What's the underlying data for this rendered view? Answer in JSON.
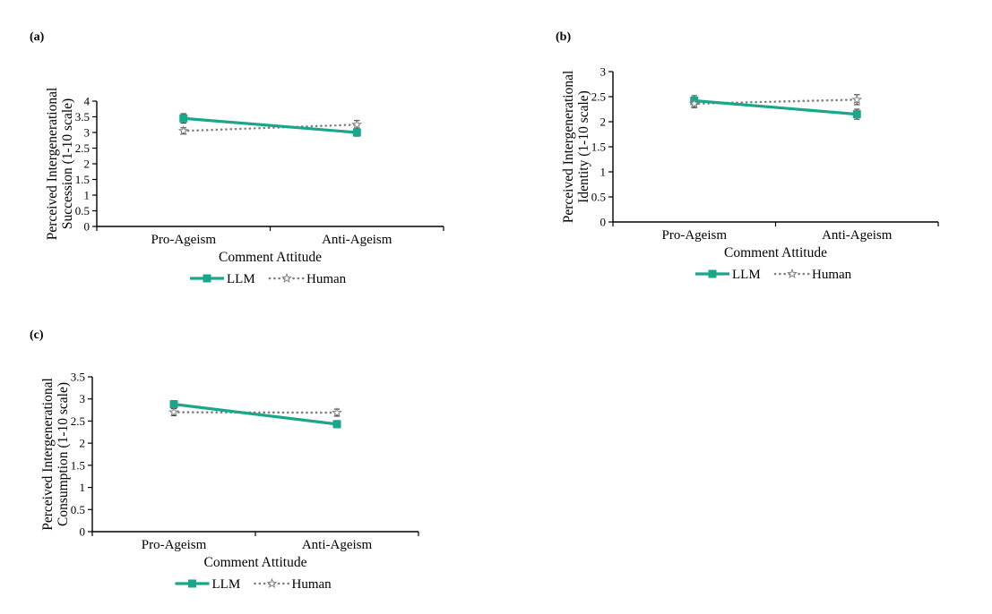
{
  "figure": {
    "background": "#ffffff",
    "colors": {
      "llm": "#1aa689",
      "human": "#7f7f7f",
      "error_bar": "#404040",
      "axis": "#000000",
      "text": "#000000",
      "marker_fill_human": "#ffffff"
    },
    "legend": {
      "position": "bottom",
      "items": [
        {
          "label": "LLM",
          "marker": "filled-square",
          "line": "solid",
          "color": "#1aa689"
        },
        {
          "label": "Human",
          "marker": "open-star",
          "line": "dotted",
          "color": "#7f7f7f"
        }
      ]
    }
  },
  "chart_data": [
    {
      "id": "a",
      "panel_label": "(a)",
      "type": "line",
      "title": "",
      "ylabel": "Perceived Intergenerational Succession (1-10 scale)",
      "ylabel_lines": [
        "Perceived Intergenerational",
        "Succession (1-10 scale)"
      ],
      "xlabel": "Comment Attitude",
      "categories": [
        "Pro-Ageism",
        "Anti-Ageism"
      ],
      "ylim": [
        0,
        4
      ],
      "yticks": [
        0,
        0.5,
        1,
        1.5,
        2,
        2.5,
        3,
        3.5,
        4
      ],
      "grid": false,
      "legend_position": "bottom",
      "series": [
        {
          "name": "LLM",
          "style": "solid-square",
          "color": "#1aa689",
          "values": [
            3.45,
            3.0
          ],
          "errors": [
            0.15,
            0.12
          ]
        },
        {
          "name": "Human",
          "style": "dotted-star",
          "color": "#7f7f7f",
          "values": [
            3.05,
            3.25
          ],
          "errors": [
            0.1,
            0.13
          ]
        }
      ]
    },
    {
      "id": "b",
      "panel_label": "(b)",
      "type": "line",
      "title": "",
      "ylabel": "Perceived Intergenerational Identity (1-10 scale)",
      "ylabel_lines": [
        "Perceived Intergenerational",
        "Identity (1-10 scale)"
      ],
      "xlabel": "Comment Attitude",
      "categories": [
        "Pro-Ageism",
        "Anti-Ageism"
      ],
      "ylim": [
        0,
        3
      ],
      "yticks": [
        0,
        0.5,
        1,
        1.5,
        2,
        2.5,
        3
      ],
      "grid": false,
      "legend_position": "bottom",
      "series": [
        {
          "name": "LLM",
          "style": "solid-square",
          "color": "#1aa689",
          "values": [
            2.42,
            2.15
          ],
          "errors": [
            0.1,
            0.1
          ]
        },
        {
          "name": "Human",
          "style": "dotted-star",
          "color": "#7f7f7f",
          "values": [
            2.36,
            2.44
          ],
          "errors": [
            0.08,
            0.1
          ]
        }
      ]
    },
    {
      "id": "c",
      "panel_label": "(c)",
      "type": "line",
      "title": "",
      "ylabel": "Perceived Intergenerational Consumption (1-10 scale)",
      "ylabel_lines": [
        "Perceived Intergenerational",
        "Consumption (1-10 scale)"
      ],
      "xlabel": "Comment Attitude",
      "categories": [
        "Pro-Ageism",
        "Anti-Ageism"
      ],
      "ylim": [
        0,
        3.5
      ],
      "yticks": [
        0,
        0.5,
        1,
        1.5,
        2,
        2.5,
        3,
        3.5
      ],
      "grid": false,
      "legend_position": "bottom",
      "series": [
        {
          "name": "LLM",
          "style": "solid-square",
          "color": "#1aa689",
          "values": [
            2.88,
            2.43
          ],
          "errors": [
            0.08,
            0.08
          ]
        },
        {
          "name": "Human",
          "style": "dotted-star",
          "color": "#7f7f7f",
          "values": [
            2.7,
            2.69
          ],
          "errors": [
            0.08,
            0.08
          ]
        }
      ]
    }
  ]
}
